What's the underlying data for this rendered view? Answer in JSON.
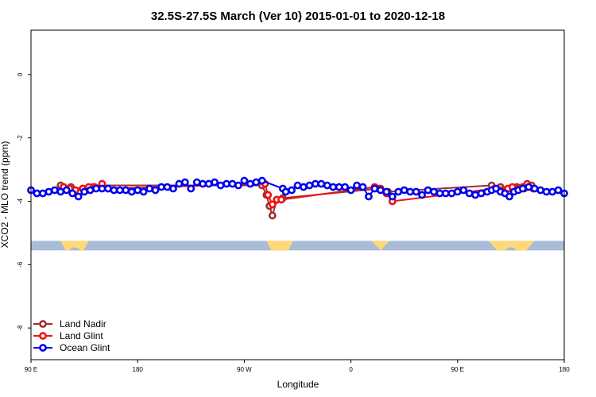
{
  "chart_data": {
    "type": "line",
    "title": "32.5S-27.5S March (Ver 10)   2015-01-01 to 2020-12-18",
    "xlabel": "Longitude",
    "ylabel": "XCO2 - MLO trend (ppm)",
    "xlim": [
      -180,
      180
    ],
    "ylim": [
      -9,
      1.4
    ],
    "x_ticks": [
      {
        "value": -180,
        "label": "90 E"
      },
      {
        "value": -108,
        "label": "180"
      },
      {
        "value": -36,
        "label": "90 W"
      },
      {
        "value": 36,
        "label": "0"
      },
      {
        "value": 108,
        "label": "90 E"
      },
      {
        "value": 180,
        "label": "180"
      }
    ],
    "y_ticks": [
      {
        "value": 0,
        "label": "0"
      },
      {
        "value": -2,
        "label": "-2"
      },
      {
        "value": -4,
        "label": "-4"
      },
      {
        "value": -6,
        "label": "-6"
      },
      {
        "value": -8,
        "label": "-8"
      }
    ],
    "grid": false,
    "legend_position": "bottom-left",
    "surface_band": {
      "y_top": -5.25,
      "y_bottom": -5.55,
      "ocean_color": "#a8bcd8",
      "land_color": "#ffd978",
      "land_segments": [
        {
          "start": -160,
          "end": -141,
          "shape": "trapezoid"
        },
        {
          "start": -21,
          "end": -3,
          "shape": "trapezoid"
        },
        {
          "start": 50,
          "end": 62,
          "shape": "triangle"
        },
        {
          "start": 129,
          "end": 160,
          "shape": "trapezoid"
        }
      ],
      "ocean_bumps": [
        {
          "center": -150.5,
          "width": 8
        },
        {
          "center": 144,
          "width": 8
        }
      ]
    },
    "series": [
      {
        "name": "Land Nadir",
        "color": "#9b3030",
        "points": [
          [
            -160,
            -3.5
          ],
          [
            -153,
            -3.55
          ],
          [
            -145,
            -3.6
          ],
          [
            -138,
            -3.55
          ],
          [
            -132,
            -3.5
          ],
          [
            -24,
            -3.5
          ],
          [
            -21,
            -3.8
          ],
          [
            -19,
            -4.15
          ],
          [
            -17,
            -4.45
          ],
          [
            -14,
            -3.95
          ],
          [
            -10,
            -3.9
          ],
          [
            55,
            -3.6
          ],
          [
            61,
            -3.7
          ],
          [
            131,
            -3.5
          ],
          [
            137,
            -3.55
          ],
          [
            144,
            -3.6
          ],
          [
            148,
            -3.55
          ],
          [
            153,
            -3.6
          ],
          [
            158,
            -3.5
          ]
        ]
      },
      {
        "name": "Land Glint",
        "color": "#ee1111",
        "points": [
          [
            -158,
            -3.55
          ],
          [
            -154,
            -3.6
          ],
          [
            -150,
            -3.65
          ],
          [
            -145,
            -3.6
          ],
          [
            -141,
            -3.55
          ],
          [
            -137,
            -3.55
          ],
          [
            -132,
            -3.45
          ],
          [
            -128,
            -3.6
          ],
          [
            -22,
            -3.45
          ],
          [
            -20,
            -3.8
          ],
          [
            -17,
            -4.1
          ],
          [
            -14,
            -3.95
          ],
          [
            -11,
            -3.95
          ],
          [
            52,
            -3.55
          ],
          [
            56,
            -3.6
          ],
          [
            60,
            -3.75
          ],
          [
            64,
            -4.0
          ],
          [
            133,
            -3.6
          ],
          [
            137,
            -3.65
          ],
          [
            142,
            -3.6
          ],
          [
            145,
            -3.55
          ],
          [
            149,
            -3.6
          ],
          [
            152,
            -3.55
          ],
          [
            155,
            -3.45
          ],
          [
            159,
            -3.6
          ]
        ]
      },
      {
        "name": "Ocean Glint",
        "color": "#0000ee",
        "points": [
          [
            -180,
            -3.65
          ],
          [
            -176,
            -3.75
          ],
          [
            -172,
            -3.75
          ],
          [
            -168,
            -3.7
          ],
          [
            -164,
            -3.65
          ],
          [
            -160,
            -3.7
          ],
          [
            -156,
            -3.65
          ],
          [
            -152,
            -3.75
          ],
          [
            -148,
            -3.85
          ],
          [
            -144,
            -3.7
          ],
          [
            -140,
            -3.65
          ],
          [
            -136,
            -3.6
          ],
          [
            -132,
            -3.6
          ],
          [
            -128,
            -3.6
          ],
          [
            -124,
            -3.65
          ],
          [
            -120,
            -3.65
          ],
          [
            -116,
            -3.65
          ],
          [
            -112,
            -3.7
          ],
          [
            -108,
            -3.65
          ],
          [
            -104,
            -3.7
          ],
          [
            -100,
            -3.6
          ],
          [
            -96,
            -3.65
          ],
          [
            -92,
            -3.55
          ],
          [
            -88,
            -3.55
          ],
          [
            -84,
            -3.6
          ],
          [
            -80,
            -3.45
          ],
          [
            -76,
            -3.4
          ],
          [
            -72,
            -3.6
          ],
          [
            -68,
            -3.4
          ],
          [
            -64,
            -3.45
          ],
          [
            -60,
            -3.45
          ],
          [
            -56,
            -3.4
          ],
          [
            -52,
            -3.5
          ],
          [
            -48,
            -3.45
          ],
          [
            -44,
            -3.45
          ],
          [
            -40,
            -3.5
          ],
          [
            -36,
            -3.35
          ],
          [
            -32,
            -3.45
          ],
          [
            -28,
            -3.4
          ],
          [
            -24,
            -3.35
          ],
          [
            -10,
            -3.6
          ],
          [
            -8,
            -3.7
          ],
          [
            -4,
            -3.65
          ],
          [
            0,
            -3.5
          ],
          [
            4,
            -3.55
          ],
          [
            8,
            -3.5
          ],
          [
            12,
            -3.45
          ],
          [
            16,
            -3.45
          ],
          [
            20,
            -3.5
          ],
          [
            24,
            -3.55
          ],
          [
            28,
            -3.55
          ],
          [
            32,
            -3.55
          ],
          [
            36,
            -3.65
          ],
          [
            40,
            -3.5
          ],
          [
            44,
            -3.55
          ],
          [
            48,
            -3.85
          ],
          [
            52,
            -3.6
          ],
          [
            56,
            -3.65
          ],
          [
            60,
            -3.7
          ],
          [
            64,
            -3.85
          ],
          [
            68,
            -3.7
          ],
          [
            72,
            -3.65
          ],
          [
            76,
            -3.7
          ],
          [
            80,
            -3.7
          ],
          [
            84,
            -3.8
          ],
          [
            88,
            -3.65
          ],
          [
            92,
            -3.7
          ],
          [
            96,
            -3.75
          ],
          [
            100,
            -3.75
          ],
          [
            104,
            -3.75
          ],
          [
            108,
            -3.7
          ],
          [
            112,
            -3.65
          ],
          [
            116,
            -3.75
          ],
          [
            120,
            -3.8
          ],
          [
            124,
            -3.75
          ],
          [
            128,
            -3.7
          ],
          [
            131,
            -3.65
          ],
          [
            134,
            -3.6
          ],
          [
            137,
            -3.7
          ],
          [
            140,
            -3.75
          ],
          [
            143,
            -3.85
          ],
          [
            146,
            -3.7
          ],
          [
            149,
            -3.65
          ],
          [
            152,
            -3.6
          ],
          [
            156,
            -3.55
          ],
          [
            160,
            -3.6
          ],
          [
            164,
            -3.65
          ],
          [
            168,
            -3.7
          ],
          [
            172,
            -3.7
          ],
          [
            176,
            -3.65
          ],
          [
            180,
            -3.75
          ]
        ]
      }
    ]
  }
}
